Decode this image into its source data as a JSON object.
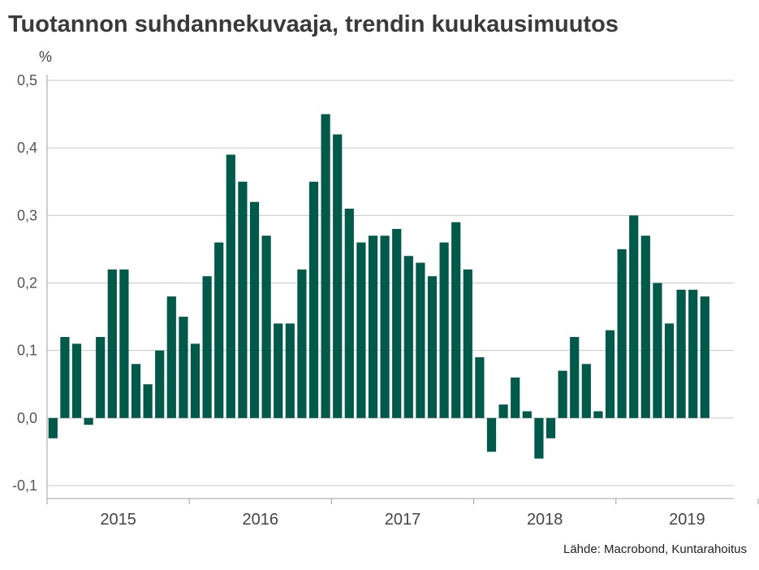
{
  "title": "Tuotannon suhdannekuvaaja, trendin kuukausimuutos",
  "unit_label": "%",
  "source": "Lähde: Macrobond, Kuntarahoitus",
  "colors": {
    "bar": "#005a4a",
    "grid": "#c8c8c8",
    "axis": "#a0a0a0"
  },
  "chart_data": {
    "type": "bar",
    "title": "Tuotannon suhdannekuvaaja, trendin kuukausimuutos",
    "ylabel": "%",
    "xlabel": "",
    "ylim": [
      -0.1,
      0.5
    ],
    "yticks": [
      -0.1,
      0.0,
      0.1,
      0.2,
      0.3,
      0.4,
      0.5
    ],
    "ytick_labels": [
      "-0,1",
      "0,0",
      "0,1",
      "0,2",
      "0,3",
      "0,4",
      "0,5"
    ],
    "grid": true,
    "year_labels": [
      "2015",
      "2016",
      "2017",
      "2018",
      "2019"
    ],
    "start": "2015-01",
    "values": [
      -0.03,
      0.12,
      0.11,
      -0.01,
      0.12,
      0.22,
      0.22,
      0.08,
      0.05,
      0.1,
      0.18,
      0.15,
      0.11,
      0.21,
      0.26,
      0.39,
      0.35,
      0.32,
      0.27,
      0.14,
      0.14,
      0.22,
      0.35,
      0.45,
      0.42,
      0.31,
      0.26,
      0.27,
      0.27,
      0.28,
      0.24,
      0.23,
      0.21,
      0.26,
      0.29,
      0.22,
      0.09,
      -0.05,
      0.02,
      0.06,
      0.01,
      -0.06,
      -0.03,
      0.07,
      0.12,
      0.08,
      0.01,
      0.13,
      0.25,
      0.3,
      0.27,
      0.2,
      0.14,
      0.19,
      0.19,
      0.18
    ]
  }
}
